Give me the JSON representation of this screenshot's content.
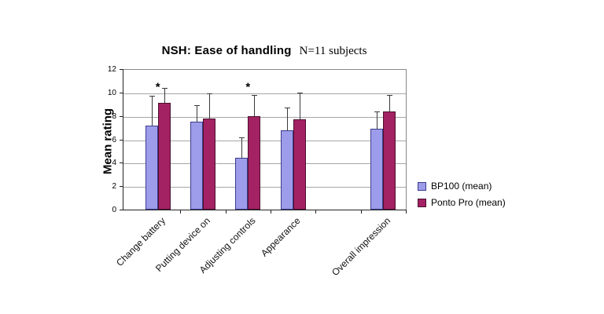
{
  "figure": {
    "title": "NSH: Ease of handling",
    "subtitle": "N=11 subjects",
    "ylabel": "Mean rating"
  },
  "legend": {
    "items": [
      {
        "label": "BP100 (mean)",
        "color": "#9c9cea",
        "border": "#3c3c8c"
      },
      {
        "label": "Ponto Pro (mean)",
        "color": "#a32264",
        "border": "#4d102e"
      }
    ]
  },
  "chart_data": {
    "type": "bar",
    "title": "NSH: Ease of handling",
    "subtitle": "N=11 subjects",
    "xlabel": "",
    "ylabel": "Mean rating",
    "ylim": [
      0,
      12
    ],
    "yticks": [
      0,
      2,
      4,
      6,
      8,
      10,
      12
    ],
    "grid": true,
    "legend_position": "right",
    "categories": [
      "Change battery",
      "Putting device on",
      "Adjusting controls",
      "Appearance",
      "",
      "Overall impression"
    ],
    "series": [
      {
        "name": "BP100 (mean)",
        "color": "#9c9cea",
        "border": "#3c3c8c",
        "values": [
          7.2,
          7.5,
          4.4,
          6.8,
          null,
          6.9
        ],
        "errors_upper": [
          2.5,
          1.4,
          1.8,
          1.9,
          null,
          1.5
        ]
      },
      {
        "name": "Ponto Pro (mean)",
        "color": "#a32264",
        "border": "#4d102e",
        "values": [
          9.1,
          7.8,
          8.0,
          7.7,
          null,
          8.4
        ],
        "errors_upper": [
          1.3,
          2.1,
          1.8,
          2.3,
          null,
          1.4
        ]
      }
    ],
    "significance": [
      "*",
      "",
      "*",
      "",
      "",
      ""
    ]
  }
}
